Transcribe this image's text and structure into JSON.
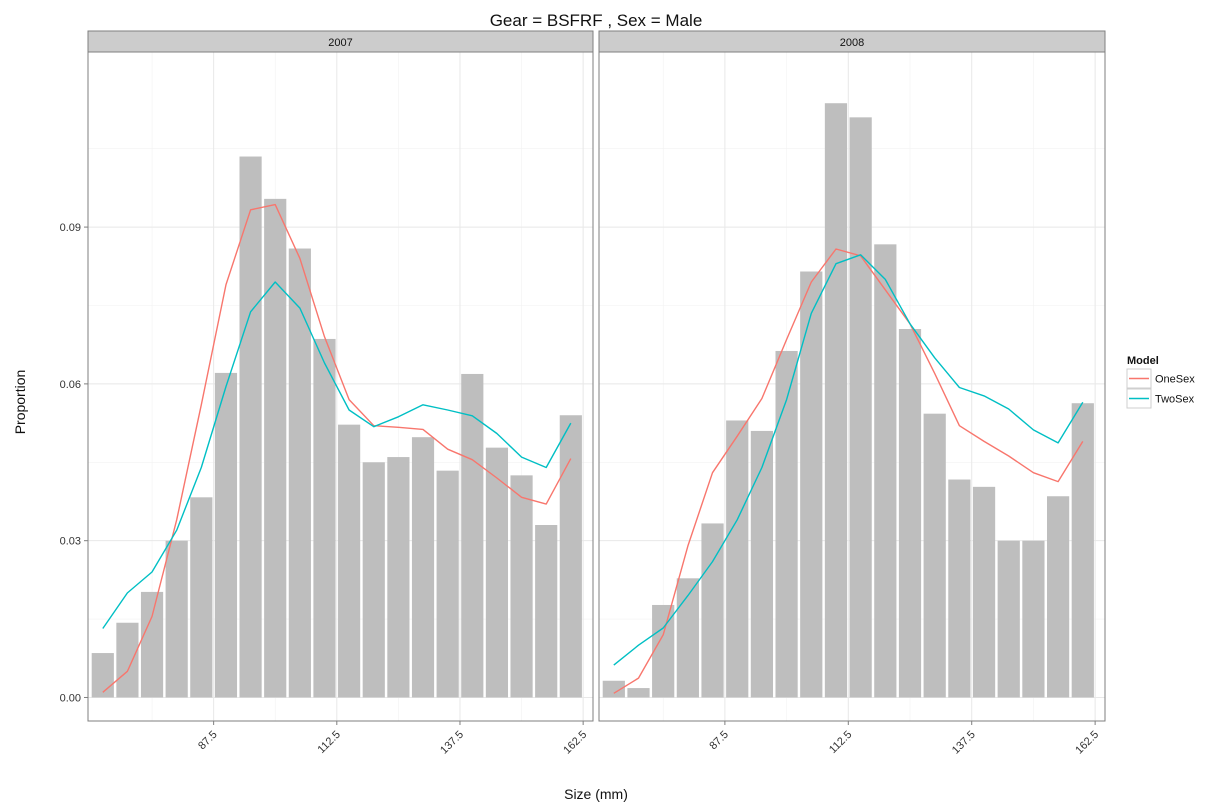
{
  "chart_data": {
    "type": "bar",
    "title": "Gear = BSFRF , Sex = Male",
    "xlabel": "Size (mm)",
    "ylabel": "Proportion",
    "x_ticks": [
      87.5,
      112.5,
      137.5,
      162.5
    ],
    "y_ticks": [
      0.0,
      0.03,
      0.06,
      0.09
    ],
    "y_tick_labels": [
      "0.00",
      "0.03",
      "0.06",
      "0.09"
    ],
    "x_tick_labels": [
      "87.5",
      "112.5",
      "137.5",
      "162.5"
    ],
    "xlim": [
      62,
      164.5
    ],
    "ylim": [
      -0.0045,
      0.1235
    ],
    "grid": true,
    "bar_width_mm": 4.5,
    "legend": {
      "title": "Model",
      "position": "right",
      "entries": [
        {
          "name": "OneSex",
          "color": "#F8766D"
        },
        {
          "name": "TwoSex",
          "color": "#00BFC4"
        }
      ]
    },
    "bar_color": "#BEBEBE",
    "panels": [
      {
        "strip": "2007",
        "x": [
          65,
          70,
          75,
          80,
          85,
          90,
          95,
          100,
          105,
          110,
          115,
          120,
          125,
          130,
          135,
          140,
          145,
          150,
          155,
          160
        ],
        "observed": [
          0.0085,
          0.0143,
          0.0202,
          0.03,
          0.0383,
          0.0621,
          0.1035,
          0.0954,
          0.0859,
          0.0686,
          0.0522,
          0.045,
          0.046,
          0.0498,
          0.0434,
          0.0619,
          0.0478,
          0.0425,
          0.033,
          0.054
        ],
        "series": [
          {
            "name": "OneSex",
            "values": [
              0.001,
              0.005,
              0.0155,
              0.034,
              0.056,
              0.079,
              0.0933,
              0.0943,
              0.084,
              0.069,
              0.057,
              0.052,
              0.0517,
              0.0513,
              0.0475,
              0.0455,
              0.042,
              0.0383,
              0.037,
              0.0457
            ]
          },
          {
            "name": "TwoSex",
            "values": [
              0.0132,
              0.02,
              0.024,
              0.032,
              0.044,
              0.0595,
              0.0738,
              0.0795,
              0.0745,
              0.064,
              0.055,
              0.0518,
              0.0537,
              0.056,
              0.055,
              0.0539,
              0.0505,
              0.046,
              0.044,
              0.0525
            ]
          }
        ]
      },
      {
        "strip": "2008",
        "x": [
          65,
          70,
          75,
          80,
          85,
          90,
          95,
          100,
          105,
          110,
          115,
          120,
          125,
          130,
          135,
          140,
          145,
          150,
          155,
          160
        ],
        "observed": [
          0.0032,
          0.0018,
          0.0177,
          0.0228,
          0.0333,
          0.053,
          0.051,
          0.0663,
          0.0815,
          0.1137,
          0.111,
          0.0867,
          0.0705,
          0.0543,
          0.0417,
          0.0403,
          0.03,
          0.03,
          0.0385,
          0.0563
        ],
        "series": [
          {
            "name": "OneSex",
            "values": [
              0.0008,
              0.0037,
              0.012,
              0.029,
              0.043,
              0.05,
              0.0572,
              0.0685,
              0.0795,
              0.0858,
              0.0845,
              0.078,
              0.0715,
              0.062,
              0.052,
              0.049,
              0.0462,
              0.043,
              0.0413,
              0.049
            ]
          },
          {
            "name": "TwoSex",
            "values": [
              0.0062,
              0.01,
              0.0133,
              0.0195,
              0.026,
              0.034,
              0.044,
              0.057,
              0.0735,
              0.083,
              0.0847,
              0.08,
              0.0715,
              0.065,
              0.0593,
              0.0577,
              0.0552,
              0.0512,
              0.0487,
              0.0565
            ]
          }
        ]
      }
    ]
  }
}
